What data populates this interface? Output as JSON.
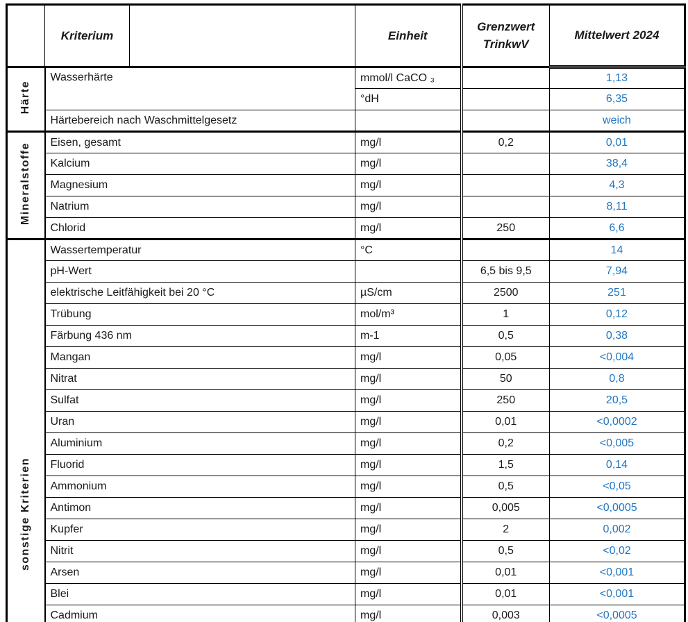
{
  "colors": {
    "value_text": "#1F76C2",
    "border": "#000000",
    "text": "#1A1A1A",
    "background": "#FFFFFF"
  },
  "header": {
    "kriterium": "Kriterium",
    "einheit": "Einheit",
    "grenzwert": "Grenzwert\nTrinkwV",
    "mittelwert": "Mittelwert 2024"
  },
  "sections": [
    {
      "group": "Härte",
      "rows": [
        {
          "kriterium": "Wasserhärte",
          "kriterium_rowspan": 2,
          "einheit": "mmol/l CaCO ₃",
          "grenzwert": "",
          "mittelwert": "1,13"
        },
        {
          "kriterium": null,
          "einheit": "°dH",
          "grenzwert": "",
          "mittelwert": "6,35"
        },
        {
          "kriterium": "Härtebereich nach Waschmittelgesetz",
          "einheit": "",
          "grenzwert": "",
          "mittelwert": "weich"
        }
      ]
    },
    {
      "group": "Mineralstoffe",
      "rows": [
        {
          "kriterium": "Eisen, gesamt",
          "einheit": "mg/l",
          "grenzwert": "0,2",
          "mittelwert": "0,01"
        },
        {
          "kriterium": "Kalcium",
          "einheit": "mg/l",
          "grenzwert": "",
          "mittelwert": "38,4"
        },
        {
          "kriterium": "Magnesium",
          "einheit": "mg/l",
          "grenzwert": "",
          "mittelwert": "4,3"
        },
        {
          "kriterium": "Natrium",
          "einheit": "mg/l",
          "grenzwert": "",
          "mittelwert": "8,11"
        },
        {
          "kriterium": "Chlorid",
          "einheit": "mg/l",
          "grenzwert": "250",
          "mittelwert": "6,6"
        }
      ]
    },
    {
      "group": "sonstige Kriterien",
      "rows": [
        {
          "kriterium": "Wassertemperatur",
          "einheit": "°C",
          "grenzwert": "",
          "mittelwert": "14"
        },
        {
          "kriterium": "pH-Wert",
          "einheit": "",
          "grenzwert": "6,5 bis 9,5",
          "mittelwert": "7,94"
        },
        {
          "kriterium": "elektrische Leitfähigkeit bei 20 °C",
          "einheit": "µS/cm",
          "grenzwert": "2500",
          "mittelwert": "251"
        },
        {
          "kriterium": "Trübung",
          "einheit": "mol/m³",
          "grenzwert": "1",
          "mittelwert": "0,12"
        },
        {
          "kriterium": "Färbung 436 nm",
          "einheit": "m-1",
          "grenzwert": "0,5",
          "mittelwert": "0,38"
        },
        {
          "kriterium": "Mangan",
          "einheit": "mg/l",
          "grenzwert": "0,05",
          "mittelwert": "<0,004"
        },
        {
          "kriterium": "Nitrat",
          "einheit": "mg/l",
          "grenzwert": "50",
          "mittelwert": "0,8"
        },
        {
          "kriterium": "Sulfat",
          "einheit": "mg/l",
          "grenzwert": "250",
          "mittelwert": "20,5"
        },
        {
          "kriterium": "Uran",
          "einheit": "mg/l",
          "grenzwert": "0,01",
          "mittelwert": "<0,0002"
        },
        {
          "kriterium": "Aluminium",
          "einheit": "mg/l",
          "grenzwert": "0,2",
          "mittelwert": "<0,005"
        },
        {
          "kriterium": "Fluorid",
          "einheit": "mg/l",
          "grenzwert": "1,5",
          "mittelwert": "0,14"
        },
        {
          "kriterium": "Ammonium",
          "einheit": "mg/l",
          "grenzwert": "0,5",
          "mittelwert": "<0,05"
        },
        {
          "kriterium": "Antimon",
          "einheit": "mg/l",
          "grenzwert": "0,005",
          "mittelwert": "<0,0005"
        },
        {
          "kriterium": "Kupfer",
          "einheit": "mg/l",
          "grenzwert": "2",
          "mittelwert": "0,002"
        },
        {
          "kriterium": "Nitrit",
          "einheit": "mg/l",
          "grenzwert": "0,5",
          "mittelwert": "<0,02"
        },
        {
          "kriterium": "Arsen",
          "einheit": "mg/l",
          "grenzwert": "0,01",
          "mittelwert": "<0,001"
        },
        {
          "kriterium": "Blei",
          "einheit": "mg/l",
          "grenzwert": "0,01",
          "mittelwert": "<0,001"
        },
        {
          "kriterium": "Cadmium",
          "einheit": "mg/l",
          "grenzwert": "0,003",
          "mittelwert": "<0,0005"
        }
      ]
    }
  ]
}
